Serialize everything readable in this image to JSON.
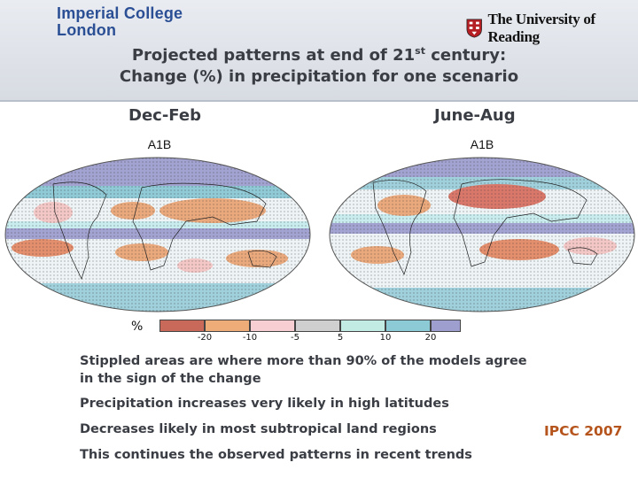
{
  "logos": {
    "imperial_line1": "Imperial College",
    "imperial_line2": "London",
    "reading": "The University of Reading"
  },
  "title": {
    "line1_pre": "Projected patterns at end of 21",
    "line1_sup": "st",
    "line1_post": " century:",
    "line2": "Change (%) in precipitation for one scenario"
  },
  "maps": [
    {
      "season": "Dec-Feb",
      "scenario": "A1B"
    },
    {
      "season": "June-Aug",
      "scenario": "A1B"
    }
  ],
  "legend": {
    "unit": "%",
    "colors": [
      "#c8695a",
      "#eeac78",
      "#f7cfd3",
      "#cfcfcf",
      "#c2ece3",
      "#8ccbd6",
      "#9f9fcf"
    ],
    "ticks": [
      "-20",
      "-10",
      "-5",
      "5",
      "10",
      "20"
    ]
  },
  "notes": {
    "stipple": "Stippled areas are where more than 90% of the models agree in the sign of the change",
    "high_lat": "Precipitation increases very likely in high latitudes",
    "subtropics": "Decreases likely in most subtropical land regions",
    "observed": "This continues the observed patterns in recent trends"
  },
  "source": "IPCC 2007"
}
